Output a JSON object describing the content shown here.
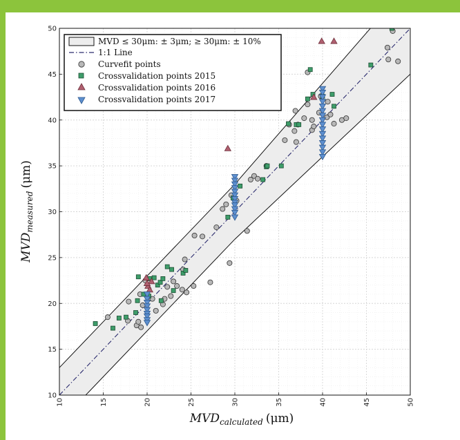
{
  "theme": {
    "frame_color": "#8cc43c",
    "band_fill": "#ededed",
    "band_edge": "#111111",
    "line_color": "#2b2b6e",
    "curvefit_color": "#b8b8b8",
    "cv2015_color": "#3e9d6a",
    "cv2016_color": "#b06070",
    "cv2017_color": "#5d8fcf"
  },
  "chart_data": {
    "type": "scatter",
    "xlabel_base": "MVD",
    "xlabel_sub": "calculated",
    "xlabel_unit": "(μm)",
    "ylabel_base": "MVD",
    "ylabel_sub": "measured",
    "ylabel_unit": "(μm)",
    "xlim": [
      10,
      50
    ],
    "ylim": [
      10,
      50
    ],
    "xticks": [
      "10",
      "15",
      "20",
      "25",
      "30",
      "35",
      "40",
      "45",
      "50"
    ],
    "yticks": [
      "10",
      "15",
      "20",
      "25",
      "30",
      "35",
      "40",
      "45",
      "50"
    ],
    "grid": true,
    "legend_position": "top-left",
    "legend": [
      {
        "key": "band",
        "label": "MVD ≤ 30μm: ± 3μm; ≥ 30μm: ± 10%"
      },
      {
        "key": "line",
        "label": "1:1 Line"
      },
      {
        "key": "curvefit",
        "label": "Curvefit points"
      },
      {
        "key": "cv2015",
        "label": "Crossvalidation points 2015"
      },
      {
        "key": "cv2016",
        "label": "Crossvalidation points 2016"
      },
      {
        "key": "cv2017",
        "label": "Crossvalidation points 2017"
      }
    ],
    "series": [
      {
        "name": "Curvefit points",
        "marker": "circle",
        "points": [
          [
            15.5,
            18.5
          ],
          [
            17.8,
            18.1
          ],
          [
            17.9,
            20.2
          ],
          [
            18.8,
            17.6
          ],
          [
            19.0,
            18.0
          ],
          [
            19.3,
            17.4
          ],
          [
            19.5,
            19.8
          ],
          [
            19.2,
            21.0
          ],
          [
            19.8,
            22.5
          ],
          [
            20.2,
            20.5
          ],
          [
            20.6,
            20.5
          ],
          [
            21.0,
            19.2
          ],
          [
            21.8,
            19.9
          ],
          [
            22.0,
            20.5
          ],
          [
            22.3,
            21.8
          ],
          [
            22.7,
            20.8
          ],
          [
            23.0,
            22.4
          ],
          [
            23.4,
            21.9
          ],
          [
            24.0,
            21.5
          ],
          [
            24.1,
            23.7
          ],
          [
            24.3,
            24.8
          ],
          [
            24.5,
            21.2
          ],
          [
            25.3,
            21.9
          ],
          [
            25.4,
            27.4
          ],
          [
            26.3,
            27.3
          ],
          [
            27.2,
            22.3
          ],
          [
            27.9,
            28.3
          ],
          [
            28.6,
            30.3
          ],
          [
            29.0,
            30.8
          ],
          [
            29.4,
            24.4
          ],
          [
            29.6,
            31.8
          ],
          [
            30.2,
            31.2
          ],
          [
            31.4,
            27.9
          ],
          [
            31.8,
            33.5
          ],
          [
            32.2,
            33.9
          ],
          [
            32.6,
            33.6
          ],
          [
            33.6,
            35.0
          ],
          [
            35.7,
            37.8
          ],
          [
            36.2,
            39.5
          ],
          [
            36.8,
            38.8
          ],
          [
            37.0,
            37.6
          ],
          [
            36.9,
            41.0
          ],
          [
            37.2,
            39.5
          ],
          [
            37.9,
            40.2
          ],
          [
            38.3,
            41.7
          ],
          [
            38.3,
            45.2
          ],
          [
            38.8,
            40.0
          ],
          [
            38.8,
            38.9
          ],
          [
            39.0,
            39.3
          ],
          [
            39.6,
            40.8
          ],
          [
            39.8,
            42.6
          ],
          [
            40.5,
            40.3
          ],
          [
            40.9,
            40.6
          ],
          [
            40.6,
            42.0
          ],
          [
            41.3,
            39.6
          ],
          [
            42.2,
            40.0
          ],
          [
            42.7,
            40.2
          ],
          [
            47.4,
            47.9
          ],
          [
            47.5,
            46.6
          ],
          [
            48.0,
            49.7
          ],
          [
            48.6,
            46.4
          ]
        ]
      },
      {
        "name": "Crossvalidation points 2015",
        "marker": "square",
        "points": [
          [
            14.1,
            17.8
          ],
          [
            16.1,
            17.3
          ],
          [
            16.8,
            18.4
          ],
          [
            17.6,
            18.5
          ],
          [
            18.7,
            19.0
          ],
          [
            18.9,
            20.3
          ],
          [
            19.0,
            22.9
          ],
          [
            19.6,
            21.0
          ],
          [
            20.3,
            22.7
          ],
          [
            20.8,
            22.8
          ],
          [
            20.2,
            20.8
          ],
          [
            21.2,
            22.0
          ],
          [
            21.5,
            22.3
          ],
          [
            21.8,
            22.7
          ],
          [
            21.6,
            20.3
          ],
          [
            22.3,
            24.0
          ],
          [
            22.8,
            23.7
          ],
          [
            23.0,
            21.4
          ],
          [
            24.1,
            23.3
          ],
          [
            24.4,
            23.6
          ],
          [
            29.2,
            29.4
          ],
          [
            29.8,
            31.5
          ],
          [
            30.6,
            32.8
          ],
          [
            33.2,
            33.5
          ],
          [
            33.6,
            34.9
          ],
          [
            33.7,
            35.0
          ],
          [
            35.3,
            35.0
          ],
          [
            36.1,
            39.6
          ],
          [
            37.0,
            39.5
          ],
          [
            37.3,
            39.5
          ],
          [
            38.3,
            42.3
          ],
          [
            38.9,
            42.8
          ],
          [
            38.6,
            45.5
          ],
          [
            40.0,
            42.6
          ],
          [
            41.1,
            42.8
          ],
          [
            41.3,
            41.5
          ],
          [
            45.5,
            46.0
          ],
          [
            47.9,
            50.0
          ]
        ]
      },
      {
        "name": "Crossvalidation points 2016",
        "marker": "triangle-up",
        "points": [
          [
            19.9,
            22.8
          ],
          [
            20.1,
            21.9
          ],
          [
            20.3,
            21.5
          ],
          [
            20.5,
            22.4
          ],
          [
            20.0,
            22.2
          ],
          [
            29.2,
            36.9
          ],
          [
            39.0,
            42.5
          ],
          [
            39.9,
            48.6
          ],
          [
            41.3,
            48.6
          ]
        ]
      },
      {
        "name": "Crossvalidation points 2017",
        "marker": "triangle-down",
        "points": [
          [
            20.0,
            21.0
          ],
          [
            20.0,
            20.5
          ],
          [
            20.0,
            20.1
          ],
          [
            20.0,
            19.7
          ],
          [
            20.0,
            19.3
          ],
          [
            20.0,
            18.9
          ],
          [
            20.0,
            18.6
          ],
          [
            20.0,
            18.2
          ],
          [
            20.0,
            17.9
          ],
          [
            30.0,
            33.8
          ],
          [
            30.0,
            33.4
          ],
          [
            30.0,
            33.0
          ],
          [
            30.0,
            32.6
          ],
          [
            30.0,
            32.2
          ],
          [
            30.0,
            31.8
          ],
          [
            30.0,
            31.4
          ],
          [
            30.0,
            31.0
          ],
          [
            30.0,
            30.7
          ],
          [
            30.0,
            30.3
          ],
          [
            30.0,
            29.9
          ],
          [
            30.0,
            29.4
          ],
          [
            40.0,
            43.4
          ],
          [
            40.0,
            43.0
          ],
          [
            40.0,
            42.5
          ],
          [
            40.0,
            42.0
          ],
          [
            40.0,
            41.5
          ],
          [
            40.0,
            41.0
          ],
          [
            40.0,
            40.5
          ],
          [
            40.0,
            40.0
          ],
          [
            40.0,
            39.5
          ],
          [
            40.0,
            39.0
          ],
          [
            40.0,
            38.5
          ],
          [
            40.0,
            38.0
          ],
          [
            40.0,
            37.5
          ],
          [
            40.0,
            37.0
          ],
          [
            40.0,
            36.5
          ],
          [
            40.0,
            36.0
          ]
        ]
      }
    ]
  }
}
